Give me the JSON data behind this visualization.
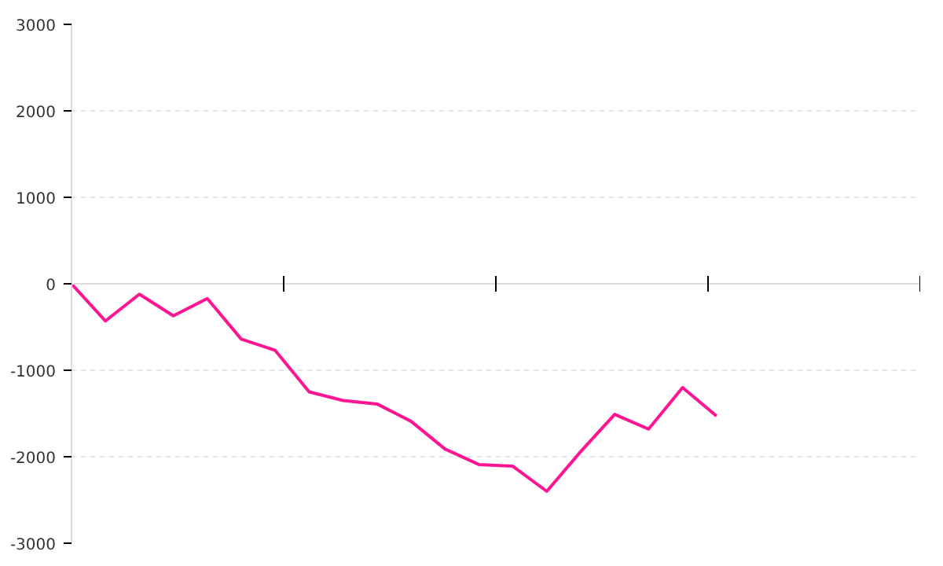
{
  "chart_data": {
    "type": "line",
    "categories": [
      null,
      null,
      null,
      null,
      null,
      null,
      null,
      null,
      null,
      null,
      null,
      null,
      null,
      null,
      null,
      null,
      null,
      null,
      null,
      null
    ],
    "series": [
      {
        "color": "#ff1493",
        "values": [
          0,
          -430,
          -120,
          -370,
          -170,
          -640,
          -770,
          -1250,
          -1350,
          -1390,
          -1590,
          -1910,
          -2090,
          -2110,
          -2400,
          -1940,
          -1510,
          -1680,
          -1200,
          -1530
        ]
      }
    ],
    "ylim": [
      -3000,
      3000
    ],
    "yticks": [
      -3000,
      -2000,
      -1000,
      0,
      1000,
      2000,
      3000
    ],
    "grid": "y",
    "marker": "none",
    "line_style": "solid"
  }
}
